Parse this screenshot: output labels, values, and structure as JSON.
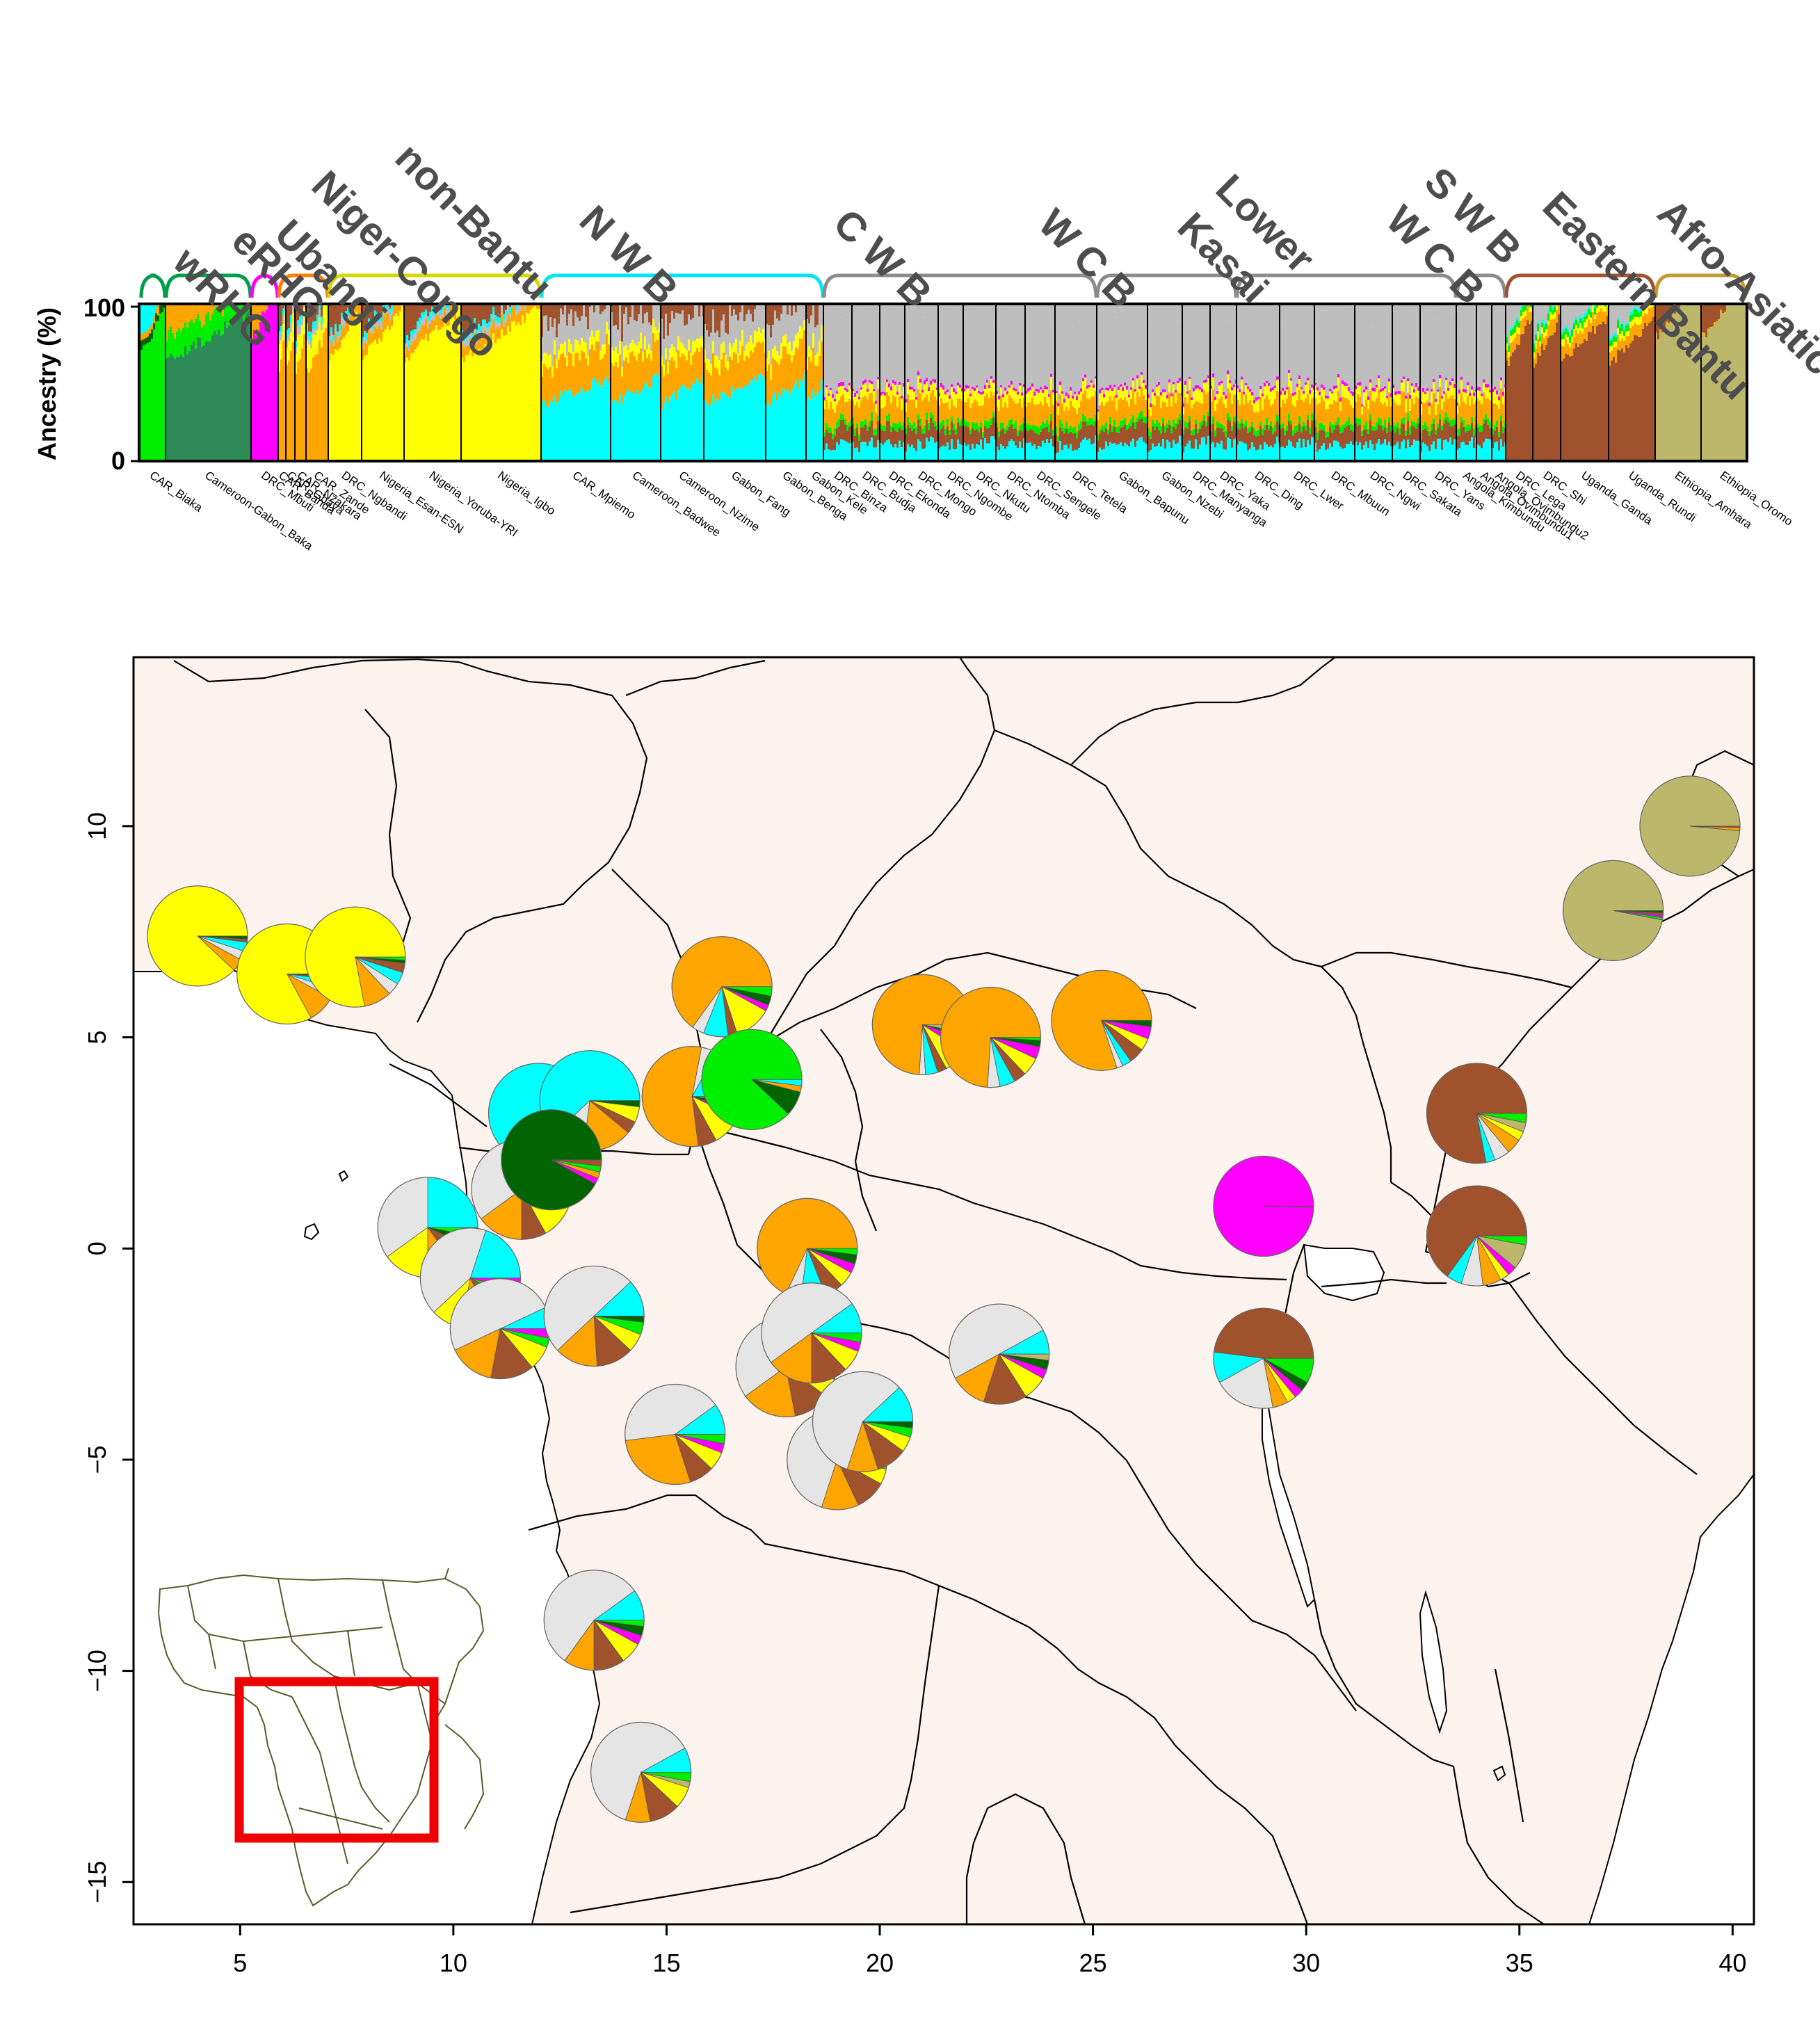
{
  "colors": {
    "wRHG": "#00ee00",
    "eRHG_light": "#2e8b57",
    "eRHG_dark": "#006400",
    "Ubangi": "#ff00ff",
    "NigerCongo": "#ffa500",
    "nonBantu": "#ffff00",
    "NWB": "#00ffff",
    "CWB_gray": "#bebebe",
    "EB": "#a0522d",
    "AA": "#bdb76b",
    "pie_gray": "#e5e5e5",
    "map_land": "#fdf3ee",
    "inset_box": "#ee0000",
    "bracket": {
      "wRHG": "#009e4a",
      "eRHG": "#009e4a",
      "Ubangi": "#ff00ff",
      "NigerCongo": "#ff7f00",
      "nonBantu": "#d7d700",
      "NWB": "#00e5ee",
      "gray": "#8c8c8c",
      "EB": "#a0522d",
      "AA": "#bf9b30"
    }
  },
  "structure_plot": {
    "ylabel": "Ancestry (%)",
    "yticks": [
      "0",
      "100"
    ],
    "groups": [
      {
        "label": "wRHG",
        "pops": [
          0
        ]
      },
      {
        "label": "eRHG",
        "pops": [
          1
        ]
      },
      {
        "label": "Ubangi",
        "pops": [
          2
        ]
      },
      {
        "label": "Niger-Congo",
        "pops": [
          3,
          4,
          5,
          6
        ]
      },
      {
        "label": "non-Bantu",
        "pops": [
          7,
          8,
          9,
          10
        ]
      },
      {
        "label": "N W B",
        "pops": [
          11,
          12,
          13,
          14,
          15,
          16
        ]
      },
      {
        "label": "C W B",
        "pops": [
          17,
          18,
          19,
          20,
          21,
          22,
          23,
          24,
          25
        ]
      },
      {
        "label": "W C B",
        "pops": [
          26,
          27,
          28,
          29
        ]
      },
      {
        "label": "Kasai",
        "label2": "Lower",
        "pops": [
          30,
          31,
          32,
          33,
          34,
          35
        ]
      },
      {
        "label": "W C B",
        "label2": "S W B",
        "pops": [
          36,
          37,
          38
        ]
      },
      {
        "label": "Eastern Bantu",
        "pops": [
          39,
          40,
          41,
          42
        ]
      },
      {
        "label": "Afro-Asiatic",
        "pops": [
          43,
          44
        ]
      }
    ],
    "populations": [
      "CAR_Biaka",
      "Cameroon-Gabon_Baka",
      "DRC_Mbuti",
      "CAR_Banda",
      "CAR_Gbaya",
      "CAR_Nzakara",
      "CAR_Zande",
      "DRC_Ngbandi",
      "Nigeria_Esan-ESN",
      "Nigeria_Yoruba-YRI",
      "Nigeria_Igbo",
      "CAR_Mpiemo",
      "Cameroon_Badwee",
      "Cameroon_Nzime",
      "Gabon_Fang",
      "Gabon_Benga",
      "Gabon_Kele",
      "DRC_Binza",
      "DRC_Budja",
      "DRC_Ekonda",
      "DRC_Mongo",
      "DRC_Ngombe",
      "DRC_Nkutu",
      "DRC_Ntomba",
      "DRC_Sengele",
      "DRC_Tetela",
      "Gabon_Bapunu",
      "Gabon_Nzebi",
      "DRC_Manyanga",
      "DRC_Yaka",
      "DRC_Ding",
      "DRC_Lwer",
      "DRC_Mbuun",
      "DRC_Ngwi",
      "DRC_Sakata",
      "DRC_Yans",
      "Angola_Kimbundu",
      "Angola_Ovimbundu1",
      "Angola_Ovimbundu2",
      "DRC_Lega",
      "DRC_Shi",
      "Uganda_Ganda",
      "Uganda_Rundi",
      "Ethiopia_Amhara",
      "Ethiopia_Oromo"
    ]
  },
  "map": {
    "xticks": [
      "5",
      "10",
      "15",
      "20",
      "25",
      "30",
      "35",
      "40"
    ],
    "yticks": [
      "10",
      "5",
      "0",
      "−5",
      "−10",
      "−15"
    ]
  },
  "chart_data": {
    "type": "map",
    "x_range": [
      2.5,
      40.5
    ],
    "y_range": [
      -16.0,
      14.0
    ],
    "pies": [
      {
        "lon": 4.0,
        "lat": 7.4,
        "slices": [
          [
            "nonBantu",
            0.88
          ],
          [
            "NigerCongo",
            0.04
          ],
          [
            "pie_gray",
            0.03
          ],
          [
            "NWB",
            0.03
          ],
          [
            "EB",
            0.01
          ],
          [
            "eRHG_dark",
            0.01
          ]
        ]
      },
      {
        "lon": 6.1,
        "lat": 6.5,
        "slices": [
          [
            "nonBantu",
            0.83
          ],
          [
            "NigerCongo",
            0.09
          ],
          [
            "pie_gray",
            0.03
          ],
          [
            "NWB",
            0.03
          ],
          [
            "EB",
            0.01
          ],
          [
            "eRHG_dark",
            0.01
          ]
        ]
      },
      {
        "lon": 7.7,
        "lat": 6.9,
        "slices": [
          [
            "nonBantu",
            0.78
          ],
          [
            "NigerCongo",
            0.09
          ],
          [
            "pie_gray",
            0.04
          ],
          [
            "NWB",
            0.04
          ],
          [
            "EB",
            0.03
          ],
          [
            "eRHG_dark",
            0.01
          ],
          [
            "wRHG",
            0.01
          ]
        ]
      },
      {
        "lon": 16.3,
        "lat": 6.2,
        "slices": [
          [
            "NigerCongo",
            0.65
          ],
          [
            "pie_gray",
            0.04
          ],
          [
            "NWB",
            0.08
          ],
          [
            "EB",
            0.03
          ],
          [
            "nonBantu",
            0.12
          ],
          [
            "Ubangi",
            0.02
          ],
          [
            "eRHG_dark",
            0.03
          ],
          [
            "wRHG",
            0.03
          ]
        ]
      },
      {
        "lon": 21.0,
        "lat": 5.3,
        "slices": [
          [
            "NigerCongo",
            0.74
          ],
          [
            "pie_gray",
            0.02
          ],
          [
            "NWB",
            0.04
          ],
          [
            "EB",
            0.03
          ],
          [
            "nonBantu",
            0.08
          ],
          [
            "Ubangi",
            0.04
          ],
          [
            "eRHG_dark",
            0.02
          ],
          [
            "AA",
            0.03
          ]
        ]
      },
      {
        "lon": 22.6,
        "lat": 5.0,
        "slices": [
          [
            "NigerCongo",
            0.74
          ],
          [
            "pie_gray",
            0.04
          ],
          [
            "NWB",
            0.05
          ],
          [
            "EB",
            0.04
          ],
          [
            "nonBantu",
            0.06
          ],
          [
            "Ubangi",
            0.04
          ],
          [
            "eRHG_dark",
            0.02
          ],
          [
            "wRHG",
            0.01
          ]
        ]
      },
      {
        "lon": 25.2,
        "lat": 5.4,
        "slices": [
          [
            "NigerCongo",
            0.8
          ],
          [
            "pie_gray",
            0.02
          ],
          [
            "NWB",
            0.03
          ],
          [
            "EB",
            0.05
          ],
          [
            "nonBantu",
            0.04
          ],
          [
            "Ubangi",
            0.04
          ],
          [
            "eRHG_dark",
            0.02
          ]
        ]
      },
      {
        "lon": 39.0,
        "lat": 10.0,
        "slices": [
          [
            "AA",
            0.985
          ],
          [
            "NigerCongo",
            0.01
          ],
          [
            "EB",
            0.005
          ]
        ]
      },
      {
        "lon": 37.2,
        "lat": 8.0,
        "slices": [
          [
            "AA",
            0.97
          ],
          [
            "wRHG",
            0.008
          ],
          [
            "Ubangi",
            0.008
          ],
          [
            "EB",
            0.007
          ],
          [
            "eRHG_dark",
            0.007
          ]
        ]
      },
      {
        "lon": 12.0,
        "lat": 3.2,
        "slices": [
          [
            "NWB",
            0.75
          ],
          [
            "NigerCongo",
            0.07
          ],
          [
            "pie_gray",
            0.12
          ],
          [
            "EB",
            0.02
          ],
          [
            "nonBantu",
            0.02
          ],
          [
            "eRHG_dark",
            0.02
          ]
        ]
      },
      {
        "lon": 13.2,
        "lat": 3.5,
        "slices": [
          [
            "NWB",
            0.62
          ],
          [
            "pie_gray",
            0.11
          ],
          [
            "NigerCongo",
            0.16
          ],
          [
            "EB",
            0.04
          ],
          [
            "nonBantu",
            0.05
          ],
          [
            "eRHG_dark",
            0.02
          ]
        ]
      },
      {
        "lon": 15.6,
        "lat": 3.6,
        "slices": [
          [
            "NWB",
            0.17
          ],
          [
            "pie_gray",
            0.05
          ],
          [
            "NigerCongo",
            0.55
          ],
          [
            "EB",
            0.06
          ],
          [
            "nonBantu",
            0.1
          ],
          [
            "Ubangi",
            0.02
          ],
          [
            "eRHG_dark",
            0.03
          ],
          [
            "wRHG",
            0.02
          ]
        ]
      },
      {
        "lon": 17.0,
        "lat": 4.0,
        "slices": [
          [
            "wRHG",
            0.88
          ],
          [
            "eRHG_dark",
            0.08
          ],
          [
            "NigerCongo",
            0.02
          ],
          [
            "NWB",
            0.02
          ]
        ]
      },
      {
        "lon": 11.6,
        "lat": 1.4,
        "slices": [
          [
            "NWB",
            0.3
          ],
          [
            "pie_gray",
            0.3
          ],
          [
            "NigerCongo",
            0.15
          ],
          [
            "EB",
            0.08
          ],
          [
            "nonBantu",
            0.12
          ],
          [
            "wRHG",
            0.05
          ]
        ]
      },
      {
        "lon": 12.3,
        "lat": 2.1,
        "slices": [
          [
            "eRHG_dark",
            0.92
          ],
          [
            "Ubangi",
            0.02
          ],
          [
            "NigerCongo",
            0.02
          ],
          [
            "wRHG",
            0.02
          ],
          [
            "EB",
            0.02
          ]
        ]
      },
      {
        "lon": 9.4,
        "lat": 0.5,
        "slices": [
          [
            "NWB",
            0.25
          ],
          [
            "pie_gray",
            0.35
          ],
          [
            "nonBantu",
            0.15
          ],
          [
            "NigerCongo",
            0.1
          ],
          [
            "EB",
            0.08
          ],
          [
            "eRHG_dark",
            0.04
          ],
          [
            "wRHG",
            0.03
          ]
        ]
      },
      {
        "lon": 10.4,
        "lat": -0.7,
        "slices": [
          [
            "NWB",
            0.2
          ],
          [
            "pie_gray",
            0.42
          ],
          [
            "nonBantu",
            0.1
          ],
          [
            "NigerCongo",
            0.1
          ],
          [
            "EB",
            0.1
          ],
          [
            "wRHG",
            0.04
          ],
          [
            "Ubangi",
            0.04
          ]
        ]
      },
      {
        "lon": 11.1,
        "lat": -1.9,
        "slices": [
          [
            "NWB",
            0.07
          ],
          [
            "pie_gray",
            0.5
          ],
          [
            "NigerCongo",
            0.15
          ],
          [
            "EB",
            0.14
          ],
          [
            "nonBantu",
            0.08
          ],
          [
            "wRHG",
            0.03
          ],
          [
            "Ubangi",
            0.03
          ]
        ]
      },
      {
        "lon": 13.3,
        "lat": -1.6,
        "slices": [
          [
            "NWB",
            0.12
          ],
          [
            "pie_gray",
            0.5
          ],
          [
            "NigerCongo",
            0.14
          ],
          [
            "EB",
            0.12
          ],
          [
            "nonBantu",
            0.06
          ],
          [
            "wRHG",
            0.04
          ],
          [
            "eRHG_dark",
            0.02
          ]
        ]
      },
      {
        "lon": 18.3,
        "lat": 0.0,
        "slices": [
          [
            "NigerCongo",
            0.68
          ],
          [
            "pie_gray",
            0.05
          ],
          [
            "NWB",
            0.08
          ],
          [
            "EB",
            0.06
          ],
          [
            "nonBantu",
            0.05
          ],
          [
            "Ubangi",
            0.03
          ],
          [
            "eRHG_dark",
            0.03
          ],
          [
            "wRHG",
            0.02
          ]
        ]
      },
      {
        "lon": 17.8,
        "lat": -2.8,
        "slices": [
          [
            "NWB",
            0.1
          ],
          [
            "pie_gray",
            0.5
          ],
          [
            "NigerCongo",
            0.18
          ],
          [
            "EB",
            0.12
          ],
          [
            "nonBantu",
            0.06
          ],
          [
            "Ubangi",
            0.02
          ],
          [
            "wRHG",
            0.02
          ]
        ]
      },
      {
        "lon": 18.4,
        "lat": -2.0,
        "slices": [
          [
            "NWB",
            0.1
          ],
          [
            "pie_gray",
            0.5
          ],
          [
            "NigerCongo",
            0.15
          ],
          [
            "EB",
            0.12
          ],
          [
            "nonBantu",
            0.07
          ],
          [
            "Ubangi",
            0.03
          ],
          [
            "wRHG",
            0.03
          ]
        ]
      },
      {
        "lon": 22.8,
        "lat": -2.5,
        "slices": [
          [
            "NWB",
            0.08
          ],
          [
            "pie_gray",
            0.5
          ],
          [
            "NigerCongo",
            0.12
          ],
          [
            "EB",
            0.14
          ],
          [
            "nonBantu",
            0.08
          ],
          [
            "Ubangi",
            0.03
          ],
          [
            "eRHG_dark",
            0.03
          ],
          [
            "AA",
            0.02
          ]
        ]
      },
      {
        "lon": 15.2,
        "lat": -4.4,
        "slices": [
          [
            "NWB",
            0.1
          ],
          [
            "pie_gray",
            0.42
          ],
          [
            "NigerCongo",
            0.28
          ],
          [
            "EB",
            0.08
          ],
          [
            "nonBantu",
            0.06
          ],
          [
            "Ubangi",
            0.03
          ],
          [
            "wRHG",
            0.03
          ]
        ]
      },
      {
        "lon": 19.0,
        "lat": -5.0,
        "slices": [
          [
            "NWB",
            0.1
          ],
          [
            "pie_gray",
            0.6
          ],
          [
            "NigerCongo",
            0.12
          ],
          [
            "EB",
            0.1
          ],
          [
            "nonBantu",
            0.05
          ],
          [
            "wRHG",
            0.03
          ]
        ]
      },
      {
        "lon": 19.6,
        "lat": -4.1,
        "slices": [
          [
            "NWB",
            0.12
          ],
          [
            "pie_gray",
            0.58
          ],
          [
            "NigerCongo",
            0.1
          ],
          [
            "EB",
            0.1
          ],
          [
            "nonBantu",
            0.05
          ],
          [
            "wRHG",
            0.03
          ],
          [
            "eRHG_dark",
            0.02
          ]
        ]
      },
      {
        "lon": 29.0,
        "lat": 1.0,
        "slices": [
          [
            "Ubangi",
            0.998
          ],
          [
            "EB",
            0.002
          ]
        ]
      },
      {
        "lon": 34.0,
        "lat": 3.2,
        "slices": [
          [
            "EB",
            0.78
          ],
          [
            "NWB",
            0.03
          ],
          [
            "pie_gray",
            0.05
          ],
          [
            "NigerCongo",
            0.05
          ],
          [
            "nonBantu",
            0.03
          ],
          [
            "AA",
            0.03
          ],
          [
            "wRHG",
            0.03
          ]
        ]
      },
      {
        "lon": 34.0,
        "lat": 0.3,
        "slices": [
          [
            "EB",
            0.65
          ],
          [
            "NWB",
            0.05
          ],
          [
            "pie_gray",
            0.07
          ],
          [
            "NigerCongo",
            0.06
          ],
          [
            "nonBantu",
            0.03
          ],
          [
            "Ubangi",
            0.03
          ],
          [
            "AA",
            0.08
          ],
          [
            "wRHG",
            0.03
          ]
        ]
      },
      {
        "lon": 29.0,
        "lat": -2.6,
        "slices": [
          [
            "EB",
            0.48
          ],
          [
            "NWB",
            0.1
          ],
          [
            "pie_gray",
            0.2
          ],
          [
            "NigerCongo",
            0.05
          ],
          [
            "nonBantu",
            0.03
          ],
          [
            "Ubangi",
            0.03
          ],
          [
            "eRHG_dark",
            0.03
          ],
          [
            "wRHG",
            0.08
          ]
        ]
      },
      {
        "lon": 13.3,
        "lat": -8.8,
        "slices": [
          [
            "NWB",
            0.1
          ],
          [
            "pie_gray",
            0.55
          ],
          [
            "NigerCongo",
            0.1
          ],
          [
            "EB",
            0.1
          ],
          [
            "nonBantu",
            0.07
          ],
          [
            "Ubangi",
            0.03
          ],
          [
            "eRHG_dark",
            0.03
          ],
          [
            "wRHG",
            0.02
          ]
        ]
      },
      {
        "lon": 14.4,
        "lat": -12.4,
        "slices": [
          [
            "NWB",
            0.08
          ],
          [
            "pie_gray",
            0.62
          ],
          [
            "NigerCongo",
            0.08
          ],
          [
            "EB",
            0.1
          ],
          [
            "nonBantu",
            0.07
          ],
          [
            "AA",
            0.02
          ],
          [
            "wRHG",
            0.03
          ]
        ]
      }
    ]
  }
}
